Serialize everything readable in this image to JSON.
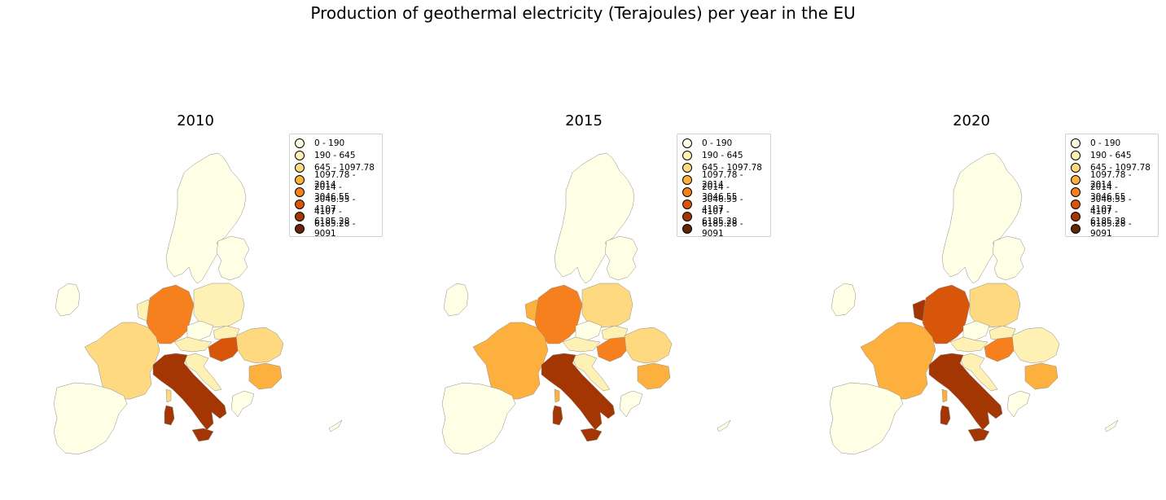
{
  "title": "Production of geothermal electricity (Terajoules) per year in the EU",
  "legend": [
    {
      "label": "0 - 190",
      "color": "#ffffe5"
    },
    {
      "label": "190 - 645",
      "color": "#fff1b3"
    },
    {
      "label": "645 - 1097.78",
      "color": "#fed980"
    },
    {
      "label": "1097.78 - 2014",
      "color": "#feb03f"
    },
    {
      "label": "2014 - 3046.55",
      "color": "#f6801e"
    },
    {
      "label": "3046.55 - 4107",
      "color": "#d8560a"
    },
    {
      "label": "4107 - 6185.28",
      "color": "#a33603"
    },
    {
      "label": "6185.28 - 9091",
      "color": "#662506"
    }
  ],
  "maps": [
    {
      "year": "2010",
      "classes": {
        "iberia": 0,
        "france": 2,
        "italy": 6,
        "germany": 4,
        "benelux": 1,
        "poland": 1,
        "czechia": 0,
        "austria": 1,
        "slovakia": 1,
        "hungary": 5,
        "romania": 2,
        "bulgaria": 3,
        "croatia": 1,
        "nordic": 0,
        "baltics": 0,
        "ireland": 0,
        "greece": 0,
        "cyprus": 0,
        "corsica": 2,
        "sardinia": 6,
        "sicily": 6
      }
    },
    {
      "year": "2015",
      "classes": {
        "iberia": 0,
        "france": 3,
        "italy": 6,
        "germany": 4,
        "benelux": 3,
        "poland": 2,
        "czechia": 0,
        "austria": 1,
        "slovakia": 1,
        "hungary": 4,
        "romania": 2,
        "bulgaria": 3,
        "croatia": 1,
        "nordic": 0,
        "baltics": 0,
        "ireland": 0,
        "greece": 0,
        "cyprus": 0,
        "corsica": 3,
        "sardinia": 6,
        "sicily": 6
      }
    },
    {
      "year": "2020",
      "classes": {
        "iberia": 0,
        "france": 3,
        "italy": 6,
        "germany": 5,
        "benelux": 6,
        "poland": 2,
        "czechia": 0,
        "austria": 1,
        "slovakia": 1,
        "hungary": 4,
        "romania": 1,
        "bulgaria": 3,
        "croatia": 1,
        "nordic": 0,
        "baltics": 0,
        "ireland": 0,
        "greece": 0,
        "cyprus": 0,
        "corsica": 3,
        "sardinia": 6,
        "sicily": 6
      }
    }
  ]
}
